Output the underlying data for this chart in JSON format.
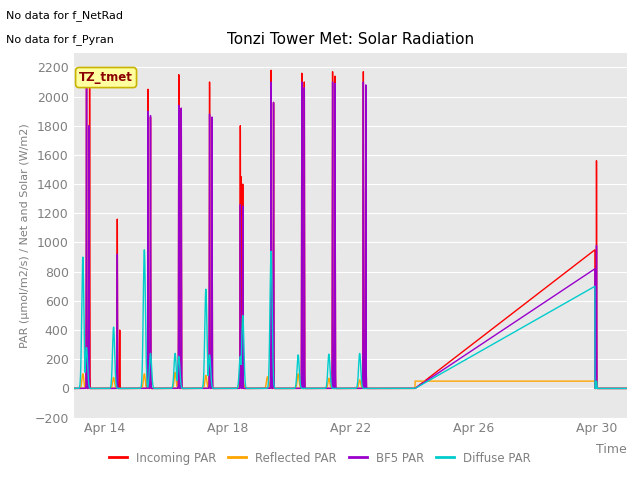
{
  "title": "Tonzi Tower Met: Solar Radiation",
  "ylabel": "PAR (μmol/m2/s) / Net and Solar (W/m2)",
  "ylim": [
    -200,
    2300
  ],
  "yticks": [
    -200,
    0,
    200,
    400,
    600,
    800,
    1000,
    1200,
    1400,
    1600,
    1800,
    2000,
    2200
  ],
  "bg_color": "#e8e8e8",
  "text_color": "#808080",
  "no_data_text1": "No data for f_NetRad",
  "no_data_text2": "No data for f_Pyran",
  "legend_label_text": "TZ_tmet",
  "legend_entries": [
    "Incoming PAR",
    "Reflected PAR",
    "BF5 PAR",
    "Diffuse PAR"
  ],
  "legend_colors": [
    "#ff0000",
    "#ffa500",
    "#9900cc",
    "#00cccc"
  ],
  "xtick_labels": [
    "Apr 14",
    "Apr 18",
    "Apr 22",
    "Apr 26",
    "Apr 30"
  ],
  "xtick_positions": [
    1,
    5,
    9,
    13,
    17
  ],
  "xlim": [
    0,
    18
  ],
  "line_width": 1.0,
  "incoming_peaks": [
    [
      0.42,
      2150
    ],
    [
      0.5,
      1800
    ],
    [
      0.52,
      2150
    ],
    [
      1.42,
      1160
    ],
    [
      1.5,
      400
    ],
    [
      2.42,
      2050
    ],
    [
      2.5,
      1860
    ],
    [
      3.42,
      2150
    ],
    [
      3.5,
      1920
    ],
    [
      4.42,
      2100
    ],
    [
      4.5,
      1850
    ],
    [
      5.42,
      1800
    ],
    [
      5.45,
      1450
    ],
    [
      5.5,
      1400
    ],
    [
      6.42,
      2180
    ],
    [
      6.5,
      1960
    ],
    [
      7.42,
      2160
    ],
    [
      7.5,
      2100
    ],
    [
      8.42,
      2170
    ],
    [
      8.5,
      2140
    ],
    [
      9.42,
      2170
    ],
    [
      9.5,
      2050
    ]
  ],
  "incoming_ramp_start_day": 11.1,
  "incoming_ramp_end_day": 16.95,
  "incoming_ramp_peak_val": 950,
  "incoming_spike_day": 17.0,
  "incoming_spike_val": 1560,
  "bf5_peaks": [
    [
      0.42,
      2100
    ],
    [
      0.5,
      1800
    ],
    [
      1.42,
      920
    ],
    [
      2.42,
      1900
    ],
    [
      2.5,
      1870
    ],
    [
      3.42,
      1940
    ],
    [
      3.5,
      1920
    ],
    [
      4.42,
      1880
    ],
    [
      4.5,
      1860
    ],
    [
      5.42,
      1260
    ],
    [
      5.5,
      1250
    ],
    [
      6.42,
      2100
    ],
    [
      6.5,
      1960
    ],
    [
      7.42,
      2100
    ],
    [
      7.5,
      2060
    ],
    [
      8.42,
      2100
    ],
    [
      8.5,
      2090
    ],
    [
      9.42,
      2100
    ],
    [
      9.5,
      2080
    ]
  ],
  "bf5_ramp_start_day": 11.1,
  "bf5_ramp_end_day": 16.95,
  "bf5_ramp_peak_val": 820,
  "bf5_spike_day": 17.0,
  "bf5_spike_val": 980,
  "diffuse_peaks": [
    [
      0.3,
      900
    ],
    [
      0.42,
      280
    ],
    [
      1.3,
      420
    ],
    [
      2.3,
      950
    ],
    [
      2.5,
      240
    ],
    [
      3.3,
      240
    ],
    [
      3.42,
      220
    ],
    [
      4.3,
      680
    ],
    [
      4.42,
      230
    ],
    [
      5.42,
      220
    ],
    [
      5.5,
      500
    ],
    [
      6.42,
      940
    ],
    [
      7.3,
      230
    ],
    [
      8.3,
      235
    ],
    [
      9.3,
      240
    ]
  ],
  "diffuse_ramp_start_day": 11.1,
  "diffuse_ramp_end_day": 16.95,
  "diffuse_ramp_peak_val": 700,
  "diffuse_spike_day": 17.0,
  "diffuse_spike_val": 50,
  "reflected_bumps": [
    [
      0.3,
      100
    ],
    [
      0.42,
      60
    ],
    [
      1.3,
      75
    ],
    [
      2.3,
      100
    ],
    [
      2.42,
      85
    ],
    [
      3.3,
      110
    ],
    [
      3.42,
      100
    ],
    [
      4.3,
      90
    ],
    [
      4.42,
      80
    ],
    [
      5.42,
      85
    ],
    [
      5.5,
      60
    ],
    [
      6.3,
      80
    ],
    [
      6.42,
      60
    ],
    [
      7.3,
      100
    ],
    [
      8.3,
      70
    ],
    [
      9.3,
      60
    ]
  ],
  "reflected_ramp_start_day": 11.1,
  "reflected_ramp_end_day": 16.95,
  "reflected_ramp_val": 50,
  "reflected_spike_day": 17.0,
  "reflected_spike_val": 60
}
